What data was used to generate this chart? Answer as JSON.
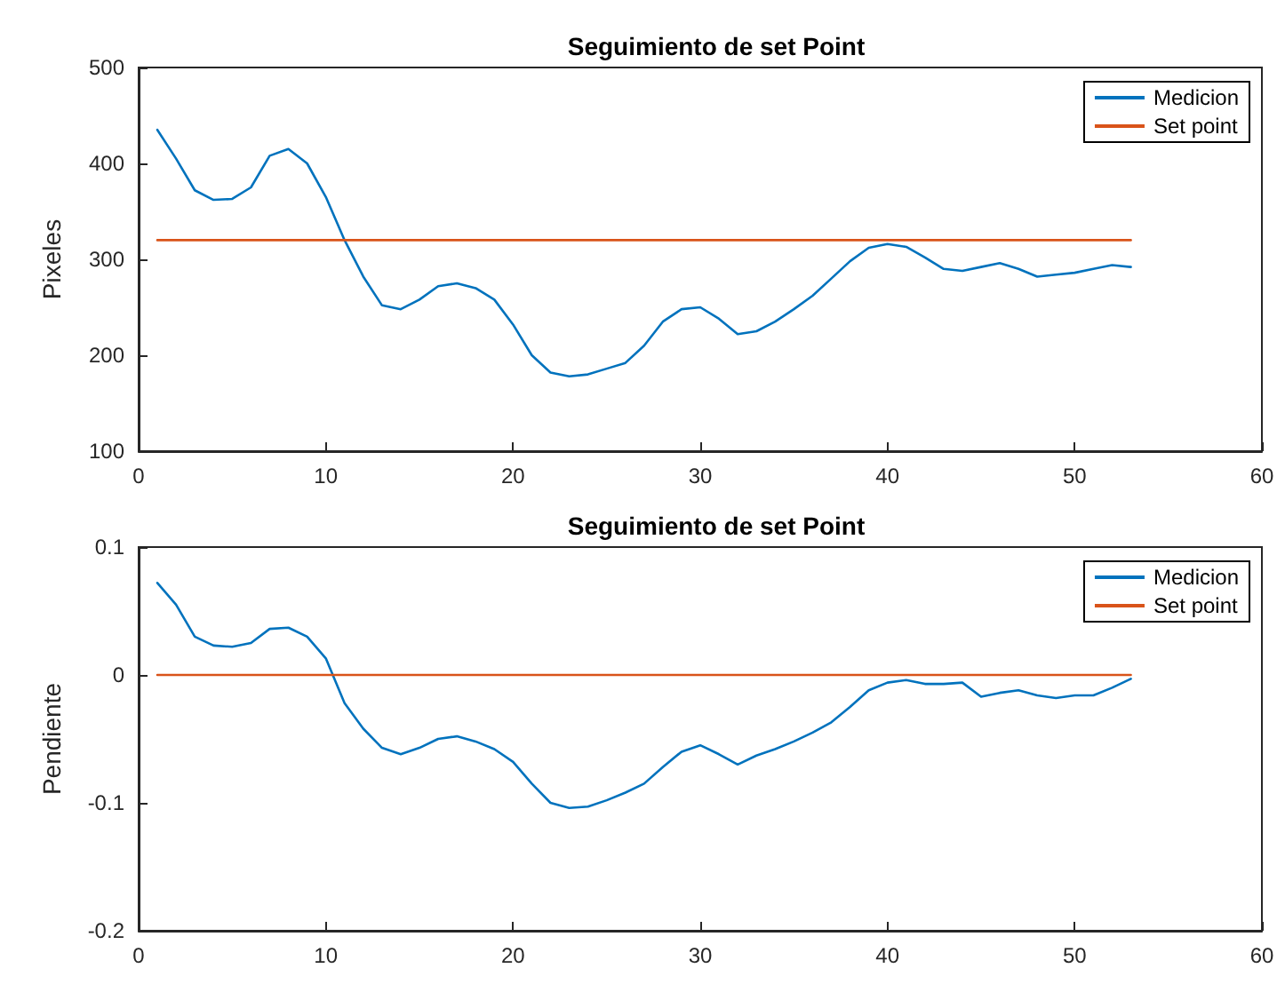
{
  "chart_data": [
    {
      "type": "line",
      "title": "Seguimiento de set Point",
      "ylabel": "Pixeles",
      "xlim": [
        0,
        60
      ],
      "xticks": [
        0,
        10,
        20,
        30,
        40,
        50,
        60
      ],
      "ylim": [
        100,
        500
      ],
      "yticks": [
        100,
        200,
        300,
        400,
        500
      ],
      "grid": false,
      "legend": "top right",
      "x": [
        1,
        2,
        3,
        4,
        5,
        6,
        7,
        8,
        9,
        10,
        11,
        12,
        13,
        14,
        15,
        16,
        17,
        18,
        19,
        20,
        21,
        22,
        23,
        24,
        25,
        26,
        27,
        28,
        29,
        30,
        31,
        32,
        33,
        34,
        35,
        36,
        37,
        38,
        39,
        40,
        41,
        42,
        43,
        44,
        45,
        46,
        47,
        48,
        49,
        50,
        51,
        52,
        53
      ],
      "series": [
        {
          "name": "Medicion",
          "color": "#0072bd",
          "values": [
            435,
            405,
            372,
            362,
            363,
            375,
            408,
            415,
            400,
            365,
            320,
            282,
            252,
            248,
            258,
            272,
            275,
            270,
            258,
            232,
            200,
            182,
            178,
            180,
            186,
            192,
            210,
            235,
            248,
            250,
            238,
            222,
            225,
            235,
            248,
            262,
            280,
            298,
            312,
            316,
            313,
            302,
            290,
            288,
            292,
            296,
            290,
            282,
            284,
            286,
            290,
            294,
            292
          ]
        },
        {
          "name": "Set point",
          "color": "#d95319",
          "values": [
            320,
            320,
            320,
            320,
            320,
            320,
            320,
            320,
            320,
            320,
            320,
            320,
            320,
            320,
            320,
            320,
            320,
            320,
            320,
            320,
            320,
            320,
            320,
            320,
            320,
            320,
            320,
            320,
            320,
            320,
            320,
            320,
            320,
            320,
            320,
            320,
            320,
            320,
            320,
            320,
            320,
            320,
            320,
            320,
            320,
            320,
            320,
            320,
            320,
            320,
            320,
            320,
            320
          ]
        }
      ]
    },
    {
      "type": "line",
      "title": "Seguimiento de set Point",
      "ylabel": "Pendiente",
      "xlim": [
        0,
        60
      ],
      "xticks": [
        0,
        10,
        20,
        30,
        40,
        50,
        60
      ],
      "ylim": [
        -0.2,
        0.1
      ],
      "yticks": [
        -0.2,
        -0.1,
        0,
        0.1
      ],
      "grid": false,
      "legend": "top right",
      "x": [
        1,
        2,
        3,
        4,
        5,
        6,
        7,
        8,
        9,
        10,
        11,
        12,
        13,
        14,
        15,
        16,
        17,
        18,
        19,
        20,
        21,
        22,
        23,
        24,
        25,
        26,
        27,
        28,
        29,
        30,
        31,
        32,
        33,
        34,
        35,
        36,
        37,
        38,
        39,
        40,
        41,
        42,
        43,
        44,
        45,
        46,
        47,
        48,
        49,
        50,
        51,
        52,
        53
      ],
      "series": [
        {
          "name": "Medicion",
          "color": "#0072bd",
          "values": [
            0.072,
            0.055,
            0.03,
            0.023,
            0.022,
            0.025,
            0.036,
            0.037,
            0.03,
            0.013,
            -0.022,
            -0.042,
            -0.057,
            -0.062,
            -0.057,
            -0.05,
            -0.048,
            -0.052,
            -0.058,
            -0.068,
            -0.085,
            -0.1,
            -0.104,
            -0.103,
            -0.098,
            -0.092,
            -0.085,
            -0.072,
            -0.06,
            -0.055,
            -0.062,
            -0.07,
            -0.063,
            -0.058,
            -0.052,
            -0.045,
            -0.037,
            -0.025,
            -0.012,
            -0.006,
            -0.004,
            -0.007,
            -0.007,
            -0.006,
            -0.017,
            -0.014,
            -0.012,
            -0.016,
            -0.018,
            -0.016,
            -0.016,
            -0.01,
            -0.003
          ]
        },
        {
          "name": "Set point",
          "color": "#d95319",
          "values": [
            0,
            0,
            0,
            0,
            0,
            0,
            0,
            0,
            0,
            0,
            0,
            0,
            0,
            0,
            0,
            0,
            0,
            0,
            0,
            0,
            0,
            0,
            0,
            0,
            0,
            0,
            0,
            0,
            0,
            0,
            0,
            0,
            0,
            0,
            0,
            0,
            0,
            0,
            0,
            0,
            0,
            0,
            0,
            0,
            0,
            0,
            0,
            0,
            0,
            0,
            0,
            0,
            0
          ]
        }
      ]
    }
  ]
}
